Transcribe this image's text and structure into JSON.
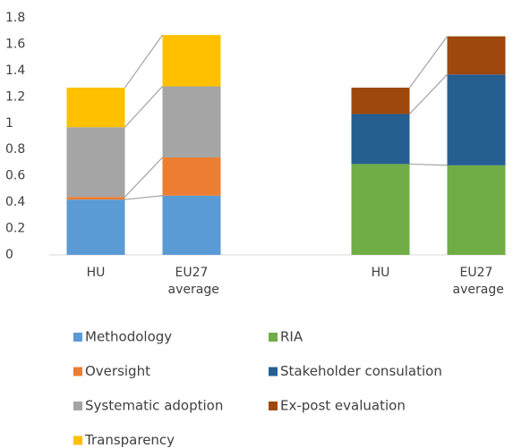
{
  "chart_data": [
    {
      "type": "bar",
      "stacked": true,
      "categories": [
        "HU",
        "EU27 average"
      ],
      "ylim": [
        0,
        1.8
      ],
      "yticks": [
        0,
        0.2,
        0.4,
        0.6,
        0.8,
        1,
        1.2,
        1.4,
        1.6,
        1.8
      ],
      "series": [
        {
          "name": "Methodology",
          "color": "#5b9bd5",
          "values": [
            0.42,
            0.45
          ]
        },
        {
          "name": "Oversight",
          "color": "#ed7d31",
          "values": [
            0.02,
            0.29
          ]
        },
        {
          "name": "Systematic adoption",
          "color": "#a5a5a5",
          "values": [
            0.53,
            0.54
          ]
        },
        {
          "name": "Transparency",
          "color": "#ffc000",
          "values": [
            0.3,
            0.39
          ]
        }
      ]
    },
    {
      "type": "bar",
      "stacked": true,
      "categories": [
        "HU",
        "EU27 average"
      ],
      "series": [
        {
          "name": "RIA",
          "color": "#70ad47",
          "values": [
            0.69,
            0.68
          ]
        },
        {
          "name": "Stakeholder consulation",
          "color": "#255e91",
          "values": [
            0.38,
            0.69
          ]
        },
        {
          "name": "Ex-post evaluation",
          "color": "#9e480e",
          "values": [
            0.2,
            0.29
          ]
        }
      ]
    }
  ]
}
